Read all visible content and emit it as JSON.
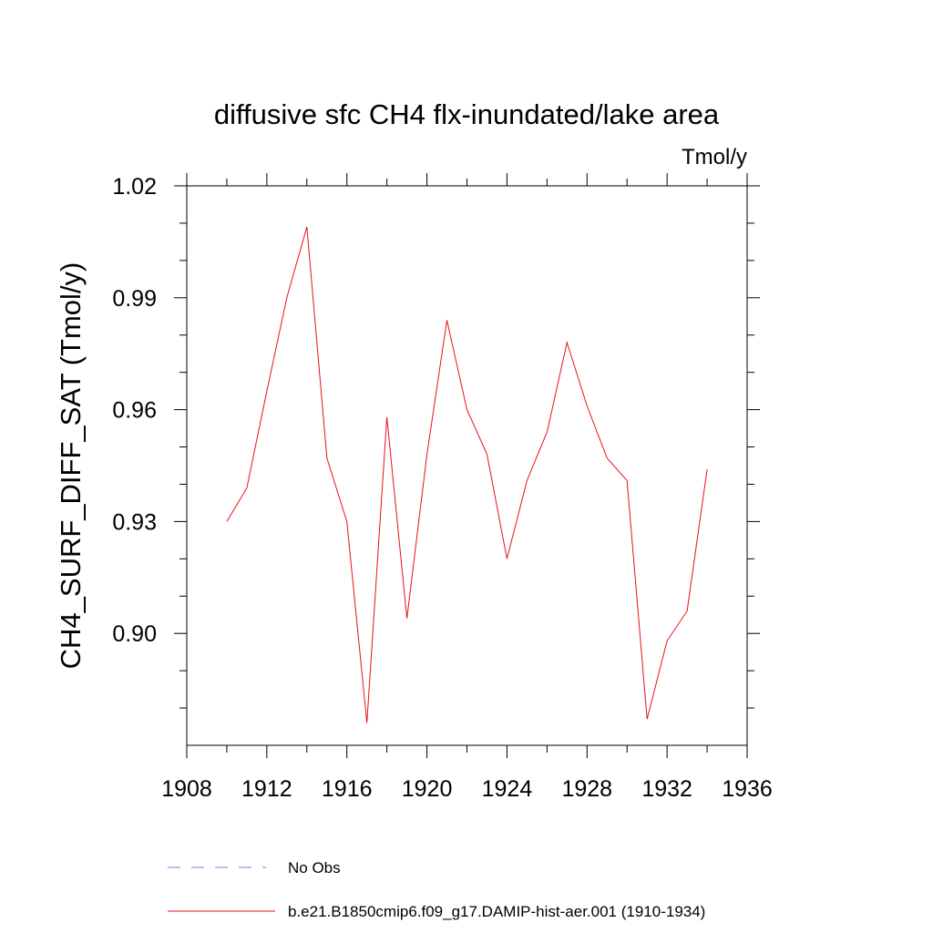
{
  "chart_data": {
    "type": "line",
    "title": "diffusive sfc CH4 flx-inundated/lake area",
    "units_label": "Tmol/y",
    "xlabel": "",
    "ylabel": "CH4_SURF_DIFF_SAT  (Tmol/y)",
    "xlim": [
      1908,
      1936
    ],
    "ylim": [
      0.87,
      1.02
    ],
    "x_ticks": [
      1908,
      1912,
      1916,
      1920,
      1924,
      1928,
      1932,
      1936
    ],
    "x_tick_labels": [
      "1908",
      "1912",
      "1916",
      "1920",
      "1924",
      "1928",
      "1932",
      "1936"
    ],
    "y_ticks": [
      0.9,
      0.93,
      0.96,
      0.99,
      1.02
    ],
    "y_tick_labels": [
      "0.90",
      "0.93",
      "0.96",
      "0.99",
      "1.02"
    ],
    "grid": false,
    "legend_position": "bottom",
    "legend": [
      {
        "label": "No Obs",
        "style": "dashed",
        "color": "#7b7bd6"
      },
      {
        "label": "b.e21.B1850cmip6.f09_g17.DAMIP-hist-aer.001 (1910-1934)",
        "style": "solid",
        "color": "#e8101a"
      }
    ],
    "series": [
      {
        "name": "b.e21.B1850cmip6.f09_g17.DAMIP-hist-aer.001 (1910-1934)",
        "color": "#e8101a",
        "x": [
          1910,
          1911,
          1912,
          1913,
          1914,
          1915,
          1916,
          1917,
          1918,
          1919,
          1920,
          1921,
          1922,
          1923,
          1924,
          1925,
          1926,
          1927,
          1928,
          1929,
          1930,
          1931,
          1932,
          1933,
          1934
        ],
        "y": [
          0.93,
          0.939,
          0.965,
          0.99,
          1.009,
          0.947,
          0.93,
          0.876,
          0.958,
          0.904,
          0.948,
          0.984,
          0.96,
          0.948,
          0.92,
          0.941,
          0.954,
          0.978,
          0.961,
          0.947,
          0.941,
          0.877,
          0.898,
          0.906,
          0.944
        ]
      }
    ]
  }
}
